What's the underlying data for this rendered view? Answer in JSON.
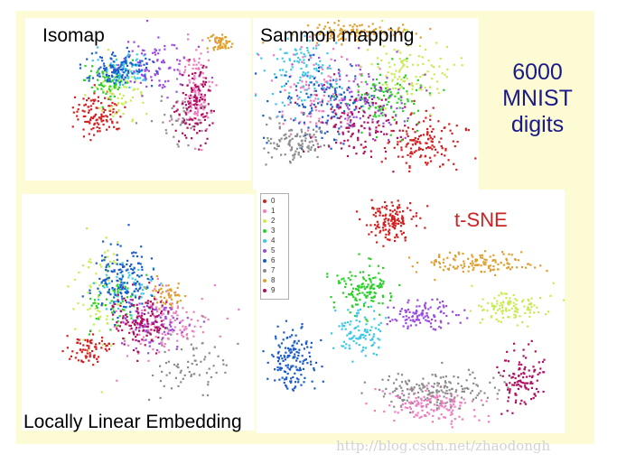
{
  "caption": {
    "line1": "6000",
    "line2": "MNIST",
    "line3": "digits"
  },
  "watermark": "http://blog.csdn.net/zhaodongh",
  "legend": {
    "labels": [
      "0",
      "1",
      "2",
      "3",
      "4",
      "5",
      "6",
      "7",
      "8",
      "9"
    ],
    "colors": [
      "#d42020",
      "#f07cc0",
      "#c8ec50",
      "#28d028",
      "#3cc8e8",
      "#9a4ae0",
      "#1a5ccc",
      "#8c8c8c",
      "#e0a030",
      "#b01060"
    ]
  },
  "chart_data": [
    {
      "type": "scatter",
      "title": "Isomap",
      "clusters": [
        {
          "digit": "0",
          "cx": 0.32,
          "cy": 0.58,
          "rx": 0.1,
          "ry": 0.12,
          "n": 110
        },
        {
          "digit": "1",
          "cx": 0.75,
          "cy": 0.45,
          "rx": 0.06,
          "ry": 0.28,
          "n": 120
        },
        {
          "digit": "2",
          "cx": 0.42,
          "cy": 0.45,
          "rx": 0.1,
          "ry": 0.14,
          "n": 70
        },
        {
          "digit": "3",
          "cx": 0.36,
          "cy": 0.38,
          "rx": 0.09,
          "ry": 0.09,
          "n": 70
        },
        {
          "digit": "4",
          "cx": 0.44,
          "cy": 0.3,
          "rx": 0.1,
          "ry": 0.09,
          "n": 80
        },
        {
          "digit": "5",
          "cx": 0.58,
          "cy": 0.3,
          "rx": 0.14,
          "ry": 0.14,
          "n": 90
        },
        {
          "digit": "6",
          "cx": 0.4,
          "cy": 0.3,
          "rx": 0.14,
          "ry": 0.1,
          "n": 110
        },
        {
          "digit": "7",
          "cx": 0.68,
          "cy": 0.62,
          "rx": 0.12,
          "ry": 0.16,
          "n": 40
        },
        {
          "digit": "8",
          "cx": 0.86,
          "cy": 0.15,
          "rx": 0.04,
          "ry": 0.05,
          "n": 60
        },
        {
          "digit": "9",
          "cx": 0.74,
          "cy": 0.52,
          "rx": 0.07,
          "ry": 0.22,
          "n": 120
        }
      ]
    },
    {
      "type": "scatter",
      "title": "Sammon mapping",
      "clusters": [
        {
          "digit": "0",
          "cx": 0.75,
          "cy": 0.72,
          "rx": 0.16,
          "ry": 0.14,
          "n": 140
        },
        {
          "digit": "1",
          "cx": 0.3,
          "cy": 0.42,
          "rx": 0.18,
          "ry": 0.22,
          "n": 120
        },
        {
          "digit": "2",
          "cx": 0.68,
          "cy": 0.3,
          "rx": 0.16,
          "ry": 0.18,
          "n": 110
        },
        {
          "digit": "3",
          "cx": 0.58,
          "cy": 0.45,
          "rx": 0.16,
          "ry": 0.16,
          "n": 110
        },
        {
          "digit": "4",
          "cx": 0.22,
          "cy": 0.32,
          "rx": 0.14,
          "ry": 0.18,
          "n": 110
        },
        {
          "digit": "5",
          "cx": 0.45,
          "cy": 0.45,
          "rx": 0.2,
          "ry": 0.22,
          "n": 110
        },
        {
          "digit": "6",
          "cx": 0.3,
          "cy": 0.5,
          "rx": 0.18,
          "ry": 0.22,
          "n": 120
        },
        {
          "digit": "7",
          "cx": 0.2,
          "cy": 0.72,
          "rx": 0.14,
          "ry": 0.12,
          "n": 110
        },
        {
          "digit": "8",
          "cx": 0.45,
          "cy": 0.08,
          "rx": 0.22,
          "ry": 0.05,
          "n": 120
        },
        {
          "digit": "9",
          "cx": 0.46,
          "cy": 0.62,
          "rx": 0.18,
          "ry": 0.18,
          "n": 120
        }
      ]
    },
    {
      "type": "scatter",
      "title": "Locally Linear Embedding",
      "clusters": [
        {
          "digit": "0",
          "cx": 0.28,
          "cy": 0.65,
          "rx": 0.08,
          "ry": 0.06,
          "n": 70
        },
        {
          "digit": "1",
          "cx": 0.6,
          "cy": 0.55,
          "rx": 0.18,
          "ry": 0.12,
          "n": 130
        },
        {
          "digit": "2",
          "cx": 0.32,
          "cy": 0.4,
          "rx": 0.1,
          "ry": 0.22,
          "n": 70
        },
        {
          "digit": "3",
          "cx": 0.4,
          "cy": 0.45,
          "rx": 0.1,
          "ry": 0.12,
          "n": 60
        },
        {
          "digit": "4",
          "cx": 0.45,
          "cy": 0.4,
          "rx": 0.12,
          "ry": 0.1,
          "n": 70
        },
        {
          "digit": "5",
          "cx": 0.58,
          "cy": 0.55,
          "rx": 0.14,
          "ry": 0.1,
          "n": 80
        },
        {
          "digit": "6",
          "cx": 0.42,
          "cy": 0.36,
          "rx": 0.1,
          "ry": 0.14,
          "n": 140
        },
        {
          "digit": "7",
          "cx": 0.72,
          "cy": 0.72,
          "rx": 0.16,
          "ry": 0.12,
          "n": 70
        },
        {
          "digit": "8",
          "cx": 0.62,
          "cy": 0.42,
          "rx": 0.06,
          "ry": 0.06,
          "n": 50
        },
        {
          "digit": "9",
          "cx": 0.52,
          "cy": 0.52,
          "rx": 0.12,
          "ry": 0.1,
          "n": 140
        }
      ]
    },
    {
      "type": "scatter",
      "title": "t-SNE",
      "clusters": [
        {
          "digit": "0",
          "cx": 0.43,
          "cy": 0.13,
          "rx": 0.07,
          "ry": 0.07,
          "n": 140
        },
        {
          "digit": "1",
          "cx": 0.57,
          "cy": 0.88,
          "rx": 0.14,
          "ry": 0.06,
          "n": 150
        },
        {
          "digit": "2",
          "cx": 0.82,
          "cy": 0.48,
          "rx": 0.1,
          "ry": 0.06,
          "n": 110
        },
        {
          "digit": "3",
          "cx": 0.35,
          "cy": 0.4,
          "rx": 0.08,
          "ry": 0.09,
          "n": 130
        },
        {
          "digit": "4",
          "cx": 0.33,
          "cy": 0.58,
          "rx": 0.07,
          "ry": 0.09,
          "n": 100
        },
        {
          "digit": "5",
          "cx": 0.54,
          "cy": 0.51,
          "rx": 0.1,
          "ry": 0.05,
          "n": 110
        },
        {
          "digit": "6",
          "cx": 0.12,
          "cy": 0.7,
          "rx": 0.07,
          "ry": 0.11,
          "n": 150
        },
        {
          "digit": "7",
          "cx": 0.58,
          "cy": 0.82,
          "rx": 0.18,
          "ry": 0.07,
          "n": 160
        },
        {
          "digit": "8",
          "cx": 0.7,
          "cy": 0.3,
          "rx": 0.18,
          "ry": 0.04,
          "n": 130
        },
        {
          "digit": "9",
          "cx": 0.85,
          "cy": 0.76,
          "rx": 0.07,
          "ry": 0.1,
          "n": 110
        }
      ]
    }
  ]
}
